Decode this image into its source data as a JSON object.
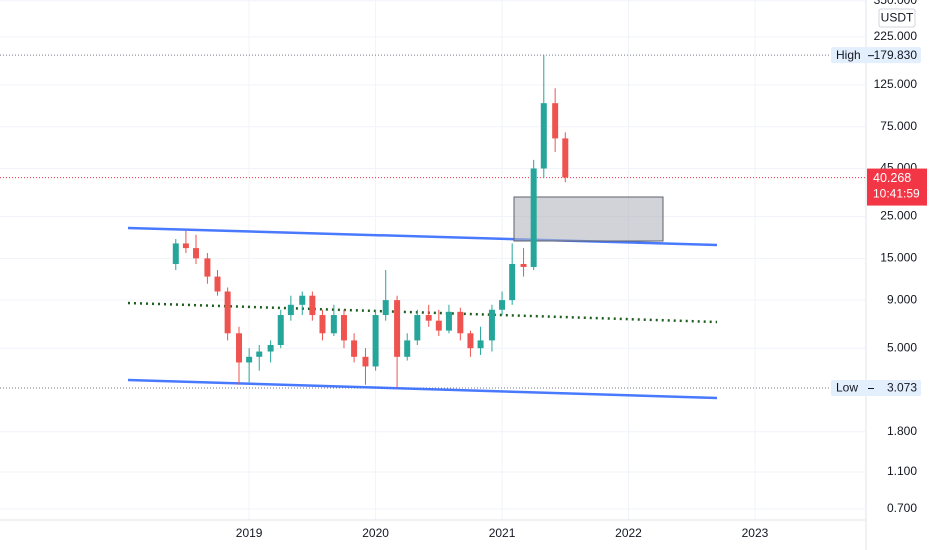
{
  "chart_data": {
    "type": "candlestick",
    "currency": "USDT",
    "log_scale": true,
    "grid": true,
    "up_color": "#26a69a",
    "down_color": "#ef5350",
    "x": [
      2018.42,
      2018.5,
      2018.58,
      2018.67,
      2018.75,
      2018.83,
      2018.92,
      2019.0,
      2019.08,
      2019.17,
      2019.25,
      2019.33,
      2019.42,
      2019.5,
      2019.58,
      2019.67,
      2019.75,
      2019.83,
      2019.92,
      2020.0,
      2020.08,
      2020.17,
      2020.25,
      2020.33,
      2020.42,
      2020.5,
      2020.58,
      2020.67,
      2020.75,
      2020.83,
      2020.92,
      2021.0,
      2021.08,
      2021.17,
      2021.25,
      2021.33,
      2021.42,
      2021.5
    ],
    "open": [
      14,
      18,
      17,
      15,
      12,
      10,
      6,
      4.2,
      4.5,
      4.8,
      5.2,
      7.5,
      8.5,
      9.5,
      7.5,
      6,
      7.5,
      5.5,
      4.5,
      4,
      7.5,
      9,
      4.5,
      5.5,
      7.5,
      7,
      6.2,
      7.8,
      6,
      5,
      5.5,
      8,
      9,
      14,
      13.5,
      45,
      100,
      65
    ],
    "high": [
      19,
      21,
      20,
      16,
      13,
      10.5,
      6.5,
      5,
      5.2,
      5.5,
      8,
      9.5,
      10,
      10,
      8,
      8.5,
      8,
      6,
      5,
      8,
      13,
      9.5,
      6,
      8,
      8.5,
      8,
      8.5,
      8.2,
      6.2,
      6.5,
      8.5,
      10,
      18,
      17,
      50,
      179.83,
      120,
      70
    ],
    "low": [
      13,
      16,
      14,
      11,
      9.5,
      5.5,
      3.2,
      3.3,
      3.8,
      4.2,
      5,
      7,
      7.5,
      7,
      5.5,
      5.8,
      5,
      4.2,
      3.2,
      3.8,
      7,
      3.073,
      4.3,
      5.2,
      6.5,
      5.8,
      6,
      5.5,
      4.5,
      4.6,
      4.8,
      7.5,
      8.5,
      12,
      13,
      40,
      55,
      38
    ],
    "close": [
      18,
      17,
      15,
      12,
      10,
      6,
      4.2,
      4.5,
      4.8,
      5.2,
      7.5,
      8.5,
      9.5,
      7.5,
      6,
      7.5,
      5.5,
      4.5,
      4,
      7.5,
      9,
      4.5,
      5.5,
      7.5,
      7,
      6.2,
      7.8,
      6,
      5,
      5.5,
      8,
      9,
      14,
      13.5,
      45,
      100,
      65,
      40.268
    ],
    "xlim": [
      2017.03,
      2023.87
    ],
    "xticks": [
      2019,
      2020,
      2021,
      2022,
      2023
    ],
    "ylim": [
      0.612,
      353
    ],
    "yticks": [
      {
        "value": 350,
        "label": "350.000"
      },
      {
        "value": 225,
        "label": "225.000"
      },
      {
        "value": 125,
        "label": "125.000"
      },
      {
        "value": 75,
        "label": "75.000"
      },
      {
        "value": 45,
        "label": "45.000"
      },
      {
        "value": 25,
        "label": "25.000"
      },
      {
        "value": 15,
        "label": "15.000"
      },
      {
        "value": 9,
        "label": "9.000"
      },
      {
        "value": 5,
        "label": "5.000"
      },
      {
        "value": 1.8,
        "label": "1.800"
      },
      {
        "value": 1.1,
        "label": "1.100"
      },
      {
        "value": 0.7,
        "label": "0.700"
      }
    ],
    "high_marker": {
      "name": "High",
      "value": 179.83,
      "value_label": "179.830"
    },
    "low_marker": {
      "name": "Low",
      "value": 3.073
    },
    "last_price": {
      "value": 40.268,
      "countdown": "10:41:59",
      "color": "#f23645"
    }
  }
}
